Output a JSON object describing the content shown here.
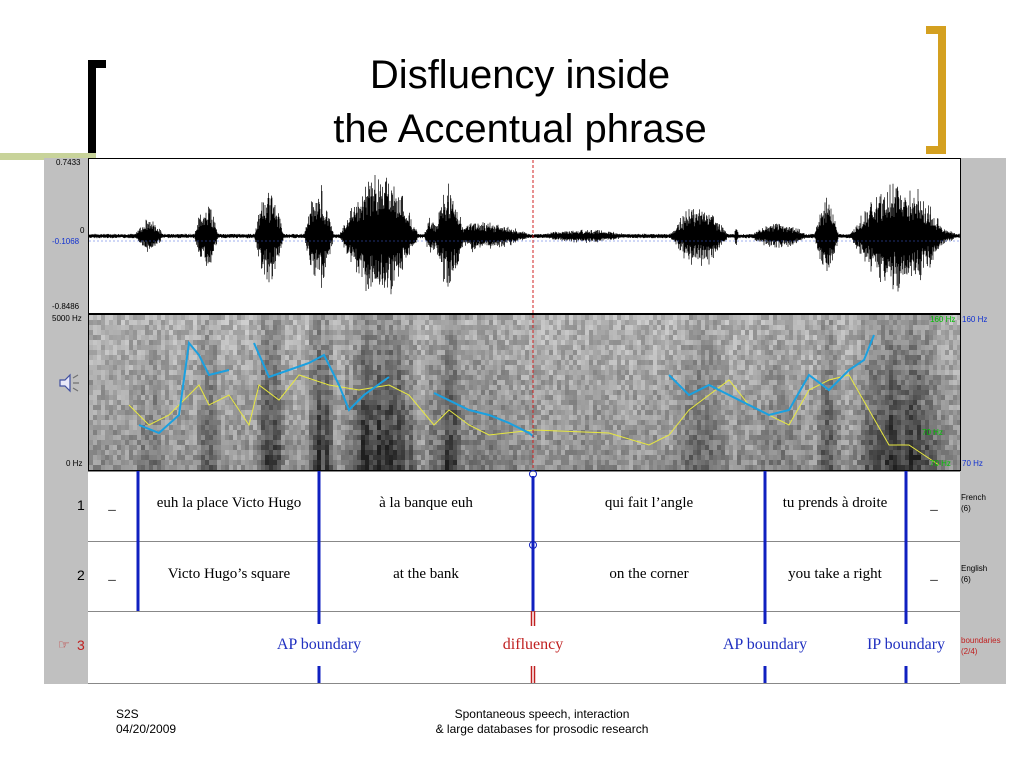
{
  "slide": {
    "title_line1": "Disfluency inside",
    "title_line2": "the Accentual phrase"
  },
  "waveform": {
    "y_max": "0.7433",
    "y_zero": "0",
    "cursor_value": "-0.1068",
    "y_min": "-0.8486"
  },
  "spectrogram": {
    "freq_top": "5000 Hz",
    "freq_bottom": "0 Hz",
    "pitch_top": "160 Hz",
    "pitch_bottom": "70 Hz",
    "pitch_marker_top": "160 Hz",
    "pitch_marker_mid": "70 Hz",
    "pitch_marker_bottom": "70 Hz"
  },
  "tiers": [
    {
      "number": "1",
      "name": "French",
      "count": "(6)",
      "intervals": [
        "_",
        "euh la place Victo Hugo",
        "à la banque euh",
        "qui fait l’angle",
        "tu prends à droite",
        "_"
      ]
    },
    {
      "number": "2",
      "name": "English",
      "count": "(6)",
      "intervals": [
        "_",
        "Victo Hugo’s square",
        "at the bank",
        "on the corner",
        "you take a right",
        "_"
      ]
    },
    {
      "number": "3",
      "name": "boundaries",
      "count": "(2/4)",
      "marker": "☞",
      "points": [
        "AP boundary",
        "difluency",
        "AP boundary",
        "IP boundary"
      ]
    }
  ],
  "footer": {
    "left_line1": "S2S",
    "left_line2": "04/20/2009",
    "center_line1": "Spontaneous speech, interaction",
    "center_line2": "& large databases for prosodic research"
  },
  "colors": {
    "accent_bracket": "#d4a020",
    "boundary_blue": "#1020c0",
    "disfluency_red": "#c02020",
    "pitch_blue": "#1aa0e0",
    "intensity_yellow": "#e8e840"
  }
}
